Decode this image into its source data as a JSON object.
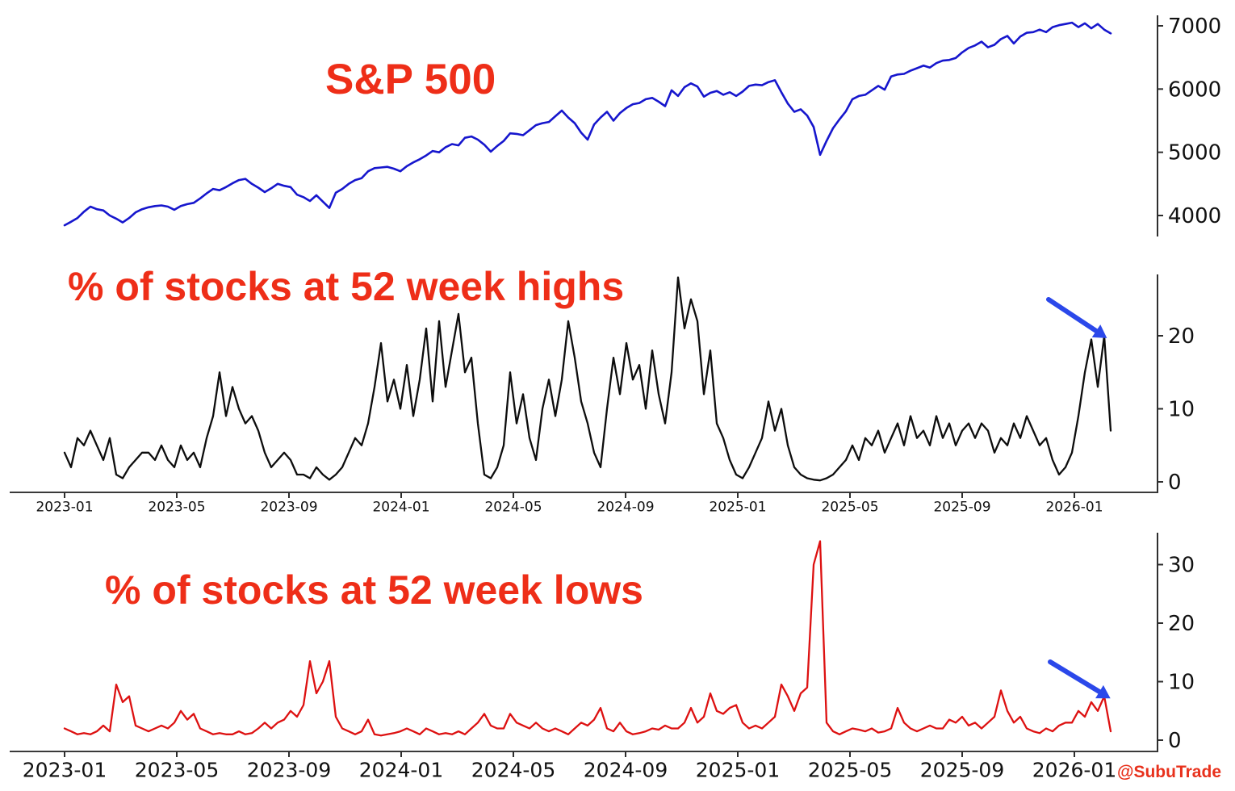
{
  "watermark": {
    "label": "@SubuTrade",
    "color": "#e8311c"
  },
  "x_tick_labels": [
    "2023-01",
    "2023-05",
    "2023-09",
    "2024-01",
    "2024-05",
    "2024-09",
    "2025-01",
    "2025-05",
    "2025-09",
    "2026-01"
  ],
  "annotations": [
    {
      "panel": "pct_52w_highs",
      "type": "arrow",
      "meaning": "points at latest spike in new highs",
      "color": "#2b48ea"
    },
    {
      "panel": "pct_52w_lows",
      "type": "arrow",
      "meaning": "points at latest uptick in new lows",
      "color": "#2b48ea"
    }
  ],
  "chart_data": [
    {
      "id": "sp500",
      "type": "line",
      "title": "S&P 500",
      "title_color": "#ee2e18",
      "line_color": "#1616cd",
      "y_ticks": [
        7000,
        6000,
        5000,
        4000
      ],
      "ylim": [
        3700,
        7150
      ],
      "x_start": "2023-01",
      "x_interval": "weekly",
      "legend_position": "none",
      "grid": false,
      "values": [
        3845,
        3900,
        3960,
        4060,
        4140,
        4100,
        4080,
        4000,
        3950,
        3890,
        3960,
        4050,
        4100,
        4130,
        4150,
        4160,
        4140,
        4090,
        4150,
        4180,
        4200,
        4270,
        4350,
        4420,
        4400,
        4450,
        4510,
        4560,
        4580,
        4500,
        4440,
        4370,
        4430,
        4500,
        4470,
        4450,
        4330,
        4290,
        4230,
        4320,
        4220,
        4120,
        4360,
        4420,
        4500,
        4560,
        4590,
        4700,
        4750,
        4760,
        4770,
        4740,
        4700,
        4780,
        4840,
        4890,
        4950,
        5020,
        5000,
        5080,
        5130,
        5110,
        5230,
        5250,
        5200,
        5120,
        5010,
        5100,
        5180,
        5300,
        5290,
        5270,
        5350,
        5430,
        5460,
        5480,
        5570,
        5660,
        5550,
        5460,
        5310,
        5200,
        5440,
        5550,
        5640,
        5500,
        5620,
        5700,
        5760,
        5780,
        5840,
        5860,
        5800,
        5730,
        5980,
        5890,
        6030,
        6090,
        6040,
        5880,
        5940,
        5970,
        5910,
        5950,
        5890,
        5960,
        6050,
        6070,
        6060,
        6110,
        6140,
        5950,
        5770,
        5640,
        5680,
        5580,
        5400,
        4960,
        5180,
        5380,
        5520,
        5650,
        5840,
        5890,
        5910,
        5980,
        6050,
        5990,
        6200,
        6230,
        6240,
        6290,
        6330,
        6370,
        6340,
        6410,
        6450,
        6460,
        6490,
        6580,
        6650,
        6690,
        6750,
        6660,
        6700,
        6790,
        6840,
        6720,
        6830,
        6890,
        6900,
        6940,
        6900,
        6980,
        7010,
        7030,
        7050,
        6980,
        7040,
        6960,
        7030,
        6940,
        6880
      ]
    },
    {
      "id": "pct_52w_highs",
      "type": "line",
      "title": "% of stocks at 52 week highs",
      "title_color": "#ee2e18",
      "line_color": "#0d0d0d",
      "y_ticks": [
        20,
        10,
        0
      ],
      "ylim": [
        -0.5,
        28.5
      ],
      "x_start": "2023-01",
      "x_interval": "weekly",
      "legend_position": "none",
      "grid": false,
      "values": [
        4,
        2,
        6,
        5,
        7,
        5,
        3,
        6,
        1,
        0.5,
        2,
        3,
        4,
        4,
        3,
        5,
        3,
        2,
        5,
        3,
        4,
        2,
        6,
        9,
        15,
        9,
        13,
        10,
        8,
        9,
        7,
        4,
        2,
        3,
        4,
        3,
        1,
        1,
        0.5,
        2,
        1,
        0.3,
        1,
        2,
        4,
        6,
        5,
        8,
        13,
        19,
        11,
        14,
        10,
        16,
        9,
        14,
        21,
        11,
        22,
        13,
        18,
        23,
        15,
        17,
        8,
        1,
        0.5,
        2,
        5,
        15,
        8,
        12,
        6,
        3,
        10,
        14,
        9,
        14,
        22,
        17,
        11,
        8,
        4,
        2,
        10,
        17,
        12,
        19,
        14,
        16,
        10,
        18,
        12,
        8,
        15,
        28,
        21,
        25,
        22,
        12,
        18,
        8,
        6,
        3,
        1,
        0.5,
        2,
        4,
        6,
        11,
        7,
        10,
        5,
        2,
        1,
        0.5,
        0.3,
        0.2,
        0.5,
        1,
        2,
        3,
        5,
        3,
        6,
        5,
        7,
        4,
        6,
        8,
        5,
        9,
        6,
        7,
        5,
        9,
        6,
        8,
        5,
        7,
        8,
        6,
        8,
        7,
        4,
        6,
        5,
        8,
        6,
        9,
        7,
        5,
        6,
        3,
        1,
        2,
        4,
        9,
        15,
        19.5,
        13,
        20,
        7
      ]
    },
    {
      "id": "pct_52w_lows",
      "type": "line",
      "title": "% of stocks at 52 week lows",
      "title_color": "#ee2e18",
      "line_color": "#dd1111",
      "y_ticks": [
        30,
        20,
        10,
        0
      ],
      "ylim": [
        -0.5,
        36
      ],
      "x_start": "2023-01",
      "x_interval": "weekly",
      "legend_position": "none",
      "grid": false,
      "values": [
        2,
        1.5,
        1,
        1.2,
        1,
        1.5,
        2.5,
        1.5,
        9.5,
        6.5,
        7.5,
        2.5,
        2,
        1.5,
        2,
        2.5,
        2,
        3,
        5,
        3.5,
        4.5,
        2,
        1.5,
        1,
        1.2,
        1,
        1,
        1.5,
        1,
        1.2,
        2,
        3,
        2,
        3,
        3.5,
        5,
        4,
        6,
        13.5,
        8,
        10,
        13.5,
        4,
        2,
        1.5,
        1,
        1.5,
        3.5,
        1,
        0.8,
        1,
        1.2,
        1.5,
        2,
        1.5,
        1,
        2,
        1.5,
        1,
        1.2,
        1,
        1.5,
        1,
        2,
        3,
        4.5,
        2.5,
        2,
        2,
        4.5,
        3,
        2.5,
        2,
        3,
        2,
        1.5,
        2,
        1.5,
        1,
        2,
        3,
        2.5,
        3.5,
        5.5,
        2,
        1.5,
        3,
        1.5,
        1,
        1.2,
        1.5,
        2,
        1.8,
        2.5,
        2,
        2,
        3,
        5.5,
        3,
        4,
        8,
        5,
        4.5,
        5.5,
        6,
        3,
        2,
        2.5,
        2,
        3,
        4,
        9.5,
        7.5,
        5,
        8,
        9,
        30,
        34,
        3,
        1.5,
        1,
        1.5,
        2,
        1.8,
        1.5,
        2,
        1.3,
        1.5,
        2,
        5.5,
        3,
        2,
        1.5,
        2,
        2.5,
        2,
        2,
        3.5,
        3,
        4,
        2.5,
        3,
        2,
        3,
        4,
        8.5,
        5,
        3,
        4,
        2,
        1.5,
        1.2,
        2,
        1.5,
        2.5,
        3,
        3,
        5,
        4,
        6.5,
        5,
        7.5,
        1.5
      ]
    }
  ]
}
